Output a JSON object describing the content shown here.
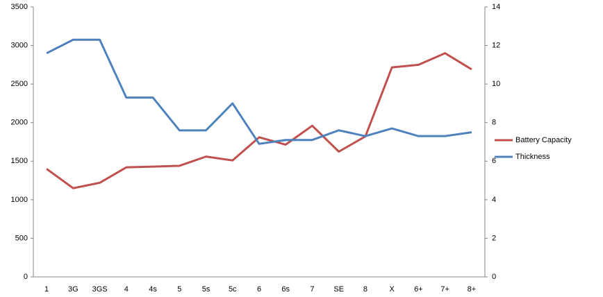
{
  "chart_data": {
    "type": "line",
    "categories": [
      "1",
      "3G",
      "3GS",
      "4",
      "4s",
      "5",
      "5s",
      "5c",
      "6",
      "6s",
      "7",
      "SE",
      "8",
      "X",
      "6+",
      "7+",
      "8+"
    ],
    "series": [
      {
        "name": "Battery Capacity",
        "color": "#c0504d",
        "values": [
          1400,
          1150,
          1220,
          1420,
          1430,
          1440,
          1560,
          1510,
          1810,
          1715,
          1960,
          1624,
          1821,
          2716,
          2750,
          2900,
          2691
        ]
      },
      {
        "name": "Thickness",
        "color": "#4f81bd",
        "axis": "y2",
        "values": [
          11.6,
          12.3,
          12.3,
          9.3,
          9.3,
          7.6,
          7.6,
          9.0,
          6.9,
          7.1,
          7.1,
          7.6,
          7.3,
          7.7,
          7.3,
          7.3,
          7.5
        ]
      }
    ],
    "ylim": [
      0,
      3500
    ],
    "yticks": [
      0,
      500,
      1000,
      1500,
      2000,
      2500,
      3000,
      3500
    ],
    "y2lim": [
      0,
      14
    ],
    "y2ticks": [
      0,
      2,
      4,
      6,
      8,
      10,
      12,
      14
    ],
    "legend": "right"
  }
}
